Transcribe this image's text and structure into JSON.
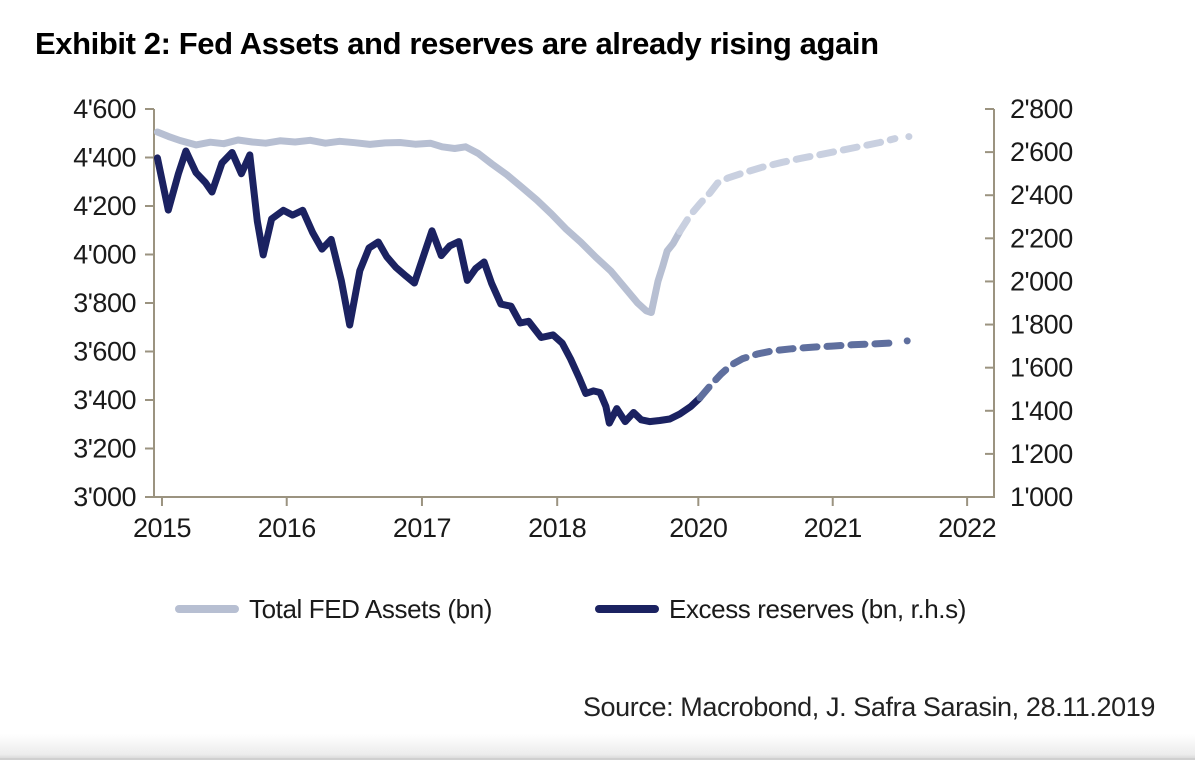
{
  "title": "Exhibit 2: Fed Assets and reserves are already rising again",
  "source": "Source: Macrobond, J. Safra Sarasin, 28.11.2019",
  "legend": [
    {
      "label": "Total FED Assets (bn)",
      "color": "#b7bfd2"
    },
    {
      "label": "Excess reserves (bn, r.h.s)",
      "color": "#1b2261"
    }
  ],
  "colors": {
    "assets_solid": "#b7bfd2",
    "assets_forecast": "#c9d0e0",
    "reserves_solid": "#1b2261",
    "reserves_forecast": "#5f6f9e",
    "axis": "#9b9380",
    "tick_text": "#1a1a1a",
    "title_text": "#000000",
    "source_text": "#222222"
  },
  "chart_data": {
    "type": "line",
    "title": "Exhibit 2: Fed Assets and reserves are already rising again",
    "xlabel": "",
    "ylabel_left": "Total FED Assets (bn)",
    "ylabel_right": "Excess reserves (bn)",
    "grid": false,
    "legend_position": "bottom",
    "left_axis": {
      "min": 3000,
      "max": 4600,
      "step": 200,
      "tick_labels": [
        "4'600",
        "4'400",
        "4'200",
        "4'000",
        "3'800",
        "3'600",
        "3'400",
        "3'200",
        "3'000"
      ],
      "tick_values": [
        4600,
        4400,
        4200,
        4000,
        3800,
        3600,
        3400,
        3200,
        3000
      ]
    },
    "right_axis": {
      "min": 1000,
      "max": 2800,
      "step": 200,
      "tick_labels": [
        "2'800",
        "2'600",
        "2'400",
        "2'200",
        "2'000",
        "1'800",
        "1'600",
        "1'400",
        "1'200",
        "1'000"
      ],
      "tick_values": [
        2800,
        2600,
        2400,
        2200,
        2000,
        1800,
        1600,
        1400,
        1200,
        1000
      ]
    },
    "x_axis": {
      "tick_labels": [
        "2015",
        "2016",
        "2017",
        "2018",
        "2020",
        "2021",
        "2022"
      ],
      "tick_pos": [
        0.0095,
        0.158,
        0.319,
        0.48,
        0.648,
        0.808,
        0.968
      ],
      "note": "tick positions are fractions of plot width as printed; the 2019 label is omitted on the original chart"
    },
    "series": [
      {
        "name": "Total FED Assets (bn)",
        "axis": "left",
        "style": "solid",
        "color": "#b7bfd2",
        "period": "observed Jan 2015 - Nov 2019",
        "points": [
          [
            0.004,
            4505
          ],
          [
            0.017,
            4487
          ],
          [
            0.031,
            4470
          ],
          [
            0.05,
            4452
          ],
          [
            0.067,
            4463
          ],
          [
            0.083,
            4457
          ],
          [
            0.1,
            4472
          ],
          [
            0.117,
            4464
          ],
          [
            0.133,
            4459
          ],
          [
            0.15,
            4469
          ],
          [
            0.168,
            4464
          ],
          [
            0.186,
            4471
          ],
          [
            0.204,
            4459
          ],
          [
            0.221,
            4467
          ],
          [
            0.239,
            4461
          ],
          [
            0.257,
            4454
          ],
          [
            0.275,
            4460
          ],
          [
            0.293,
            4462
          ],
          [
            0.311,
            4455
          ],
          [
            0.329,
            4459
          ],
          [
            0.343,
            4444
          ],
          [
            0.358,
            4437
          ],
          [
            0.371,
            4444
          ],
          [
            0.386,
            4417
          ],
          [
            0.402,
            4374
          ],
          [
            0.42,
            4329
          ],
          [
            0.438,
            4277
          ],
          [
            0.456,
            4224
          ],
          [
            0.473,
            4168
          ],
          [
            0.49,
            4107
          ],
          [
            0.508,
            4051
          ],
          [
            0.526,
            3989
          ],
          [
            0.544,
            3931
          ],
          [
            0.562,
            3857
          ],
          [
            0.576,
            3799
          ],
          [
            0.586,
            3768
          ],
          [
            0.592,
            3761
          ],
          [
            0.6,
            3890
          ],
          [
            0.606,
            3955
          ],
          [
            0.611,
            4015
          ],
          [
            0.618,
            4045
          ],
          [
            0.626,
            4095
          ]
        ]
      },
      {
        "name": "Total FED Assets (bn) - forecast",
        "axis": "left",
        "style": "dashed",
        "color": "#c9d0e0",
        "period": "forecast Dec 2019 - mid 2021",
        "points": [
          [
            0.626,
            4095
          ],
          [
            0.638,
            4160
          ],
          [
            0.65,
            4210
          ],
          [
            0.662,
            4255
          ],
          [
            0.671,
            4295
          ],
          [
            0.683,
            4315
          ],
          [
            0.7,
            4335
          ],
          [
            0.724,
            4360
          ],
          [
            0.748,
            4380
          ],
          [
            0.771,
            4397
          ],
          [
            0.795,
            4413
          ],
          [
            0.819,
            4430
          ],
          [
            0.843,
            4447
          ],
          [
            0.864,
            4462
          ],
          [
            0.882,
            4478
          ]
        ]
      },
      {
        "name": "Excess reserves (bn, r.h.s)",
        "axis": "right",
        "style": "solid",
        "color": "#1b2261",
        "period": "observed Jan 2015 - Nov 2019",
        "points": [
          [
            0.004,
            2573
          ],
          [
            0.017,
            2331
          ],
          [
            0.029,
            2500
          ],
          [
            0.038,
            2605
          ],
          [
            0.05,
            2505
          ],
          [
            0.061,
            2460
          ],
          [
            0.069,
            2415
          ],
          [
            0.081,
            2550
          ],
          [
            0.093,
            2598
          ],
          [
            0.104,
            2500
          ],
          [
            0.114,
            2587
          ],
          [
            0.123,
            2280
          ],
          [
            0.13,
            2123
          ],
          [
            0.14,
            2290
          ],
          [
            0.154,
            2330
          ],
          [
            0.165,
            2308
          ],
          [
            0.177,
            2330
          ],
          [
            0.189,
            2225
          ],
          [
            0.2,
            2150
          ],
          [
            0.211,
            2195
          ],
          [
            0.223,
            2005
          ],
          [
            0.233,
            1798
          ],
          [
            0.245,
            2050
          ],
          [
            0.256,
            2155
          ],
          [
            0.267,
            2183
          ],
          [
            0.277,
            2115
          ],
          [
            0.288,
            2065
          ],
          [
            0.3,
            2025
          ],
          [
            0.31,
            1993
          ],
          [
            0.321,
            2120
          ],
          [
            0.331,
            2235
          ],
          [
            0.342,
            2120
          ],
          [
            0.352,
            2165
          ],
          [
            0.363,
            2185
          ],
          [
            0.373,
            2005
          ],
          [
            0.383,
            2060
          ],
          [
            0.393,
            2090
          ],
          [
            0.402,
            1990
          ],
          [
            0.413,
            1895
          ],
          [
            0.425,
            1885
          ],
          [
            0.436,
            1807
          ],
          [
            0.446,
            1815
          ],
          [
            0.461,
            1740
          ],
          [
            0.475,
            1752
          ],
          [
            0.486,
            1714
          ],
          [
            0.496,
            1640
          ],
          [
            0.506,
            1555
          ],
          [
            0.514,
            1480
          ],
          [
            0.523,
            1492
          ],
          [
            0.531,
            1485
          ],
          [
            0.538,
            1420
          ],
          [
            0.542,
            1343
          ],
          [
            0.551,
            1410
          ],
          [
            0.561,
            1350
          ],
          [
            0.571,
            1392
          ],
          [
            0.58,
            1358
          ],
          [
            0.59,
            1350
          ],
          [
            0.602,
            1355
          ],
          [
            0.614,
            1362
          ],
          [
            0.626,
            1385
          ],
          [
            0.639,
            1420
          ],
          [
            0.65,
            1460
          ]
        ]
      },
      {
        "name": "Excess reserves (bn, r.h.s) - forecast",
        "axis": "right",
        "style": "dashed",
        "color": "#5f6f9e",
        "period": "forecast Dec 2019 - mid 2021",
        "points": [
          [
            0.65,
            1460
          ],
          [
            0.663,
            1520
          ],
          [
            0.675,
            1570
          ],
          [
            0.687,
            1612
          ],
          [
            0.701,
            1642
          ],
          [
            0.718,
            1663
          ],
          [
            0.736,
            1678
          ],
          [
            0.76,
            1688
          ],
          [
            0.783,
            1695
          ],
          [
            0.807,
            1700
          ],
          [
            0.831,
            1706
          ],
          [
            0.855,
            1710
          ],
          [
            0.88,
            1715
          ]
        ]
      }
    ]
  }
}
